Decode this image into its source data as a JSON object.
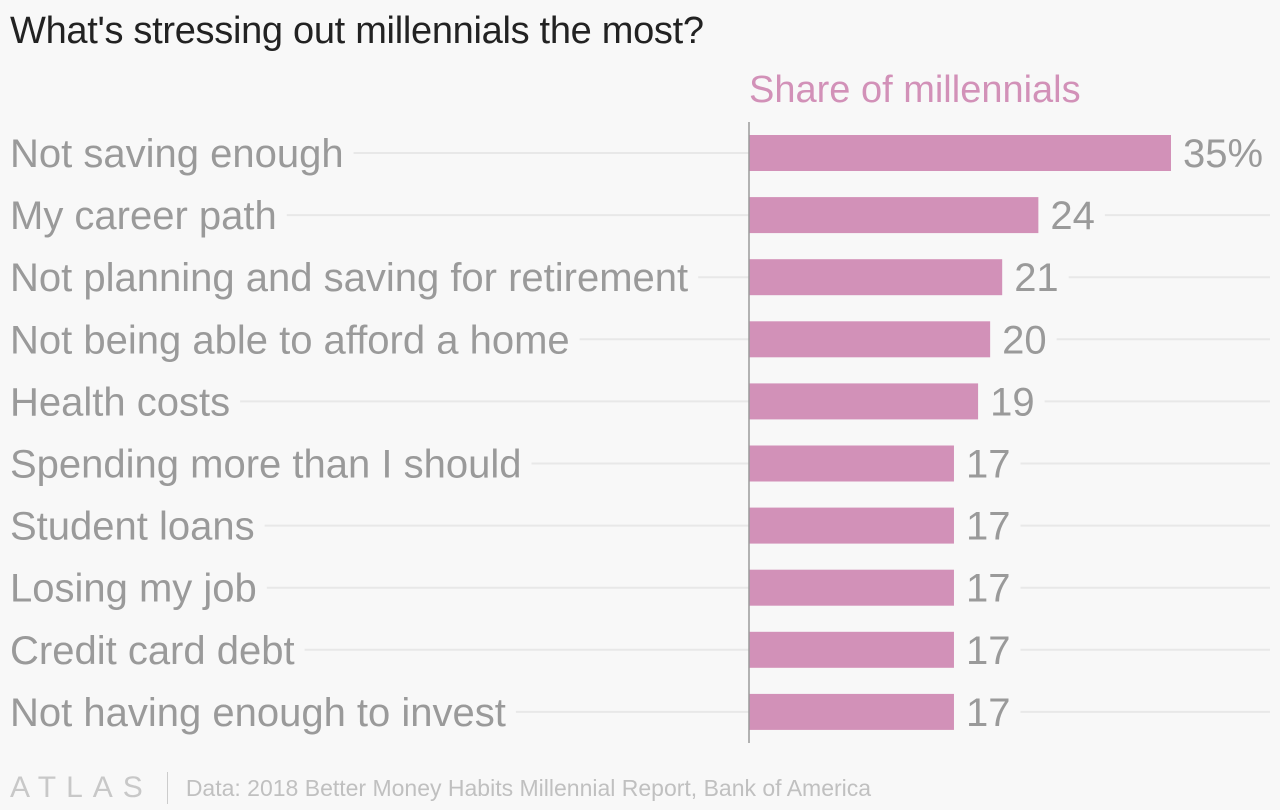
{
  "title": "What's stressing out millennials the most?",
  "colors": {
    "bar": "#d291b8",
    "header": "#d291b8",
    "label": "#9a9a9a",
    "gridline": "#e8e8e8",
    "axis": "#9a9a9a"
  },
  "chart_data": {
    "type": "bar",
    "orientation": "horizontal",
    "series_label": "Share of millennials",
    "categories": [
      "Not saving enough",
      "My career path",
      "Not planning and saving for retirement",
      "Not being able to afford a home",
      "Health costs",
      "Spending more than I should",
      "Student loans",
      "Losing my job",
      "Credit card debt",
      "Not having enough to invest"
    ],
    "values": [
      35,
      24,
      21,
      20,
      19,
      17,
      17,
      17,
      17,
      17
    ],
    "value_labels": [
      "35%",
      "24",
      "21",
      "20",
      "19",
      "17",
      "17",
      "17",
      "17",
      "17"
    ],
    "unit": "%",
    "xlim": [
      0,
      35
    ],
    "grid": true
  },
  "footer": {
    "logo": "ATLAS",
    "source": "Data: 2018 Better Money Habits Millennial Report, Bank of America"
  }
}
